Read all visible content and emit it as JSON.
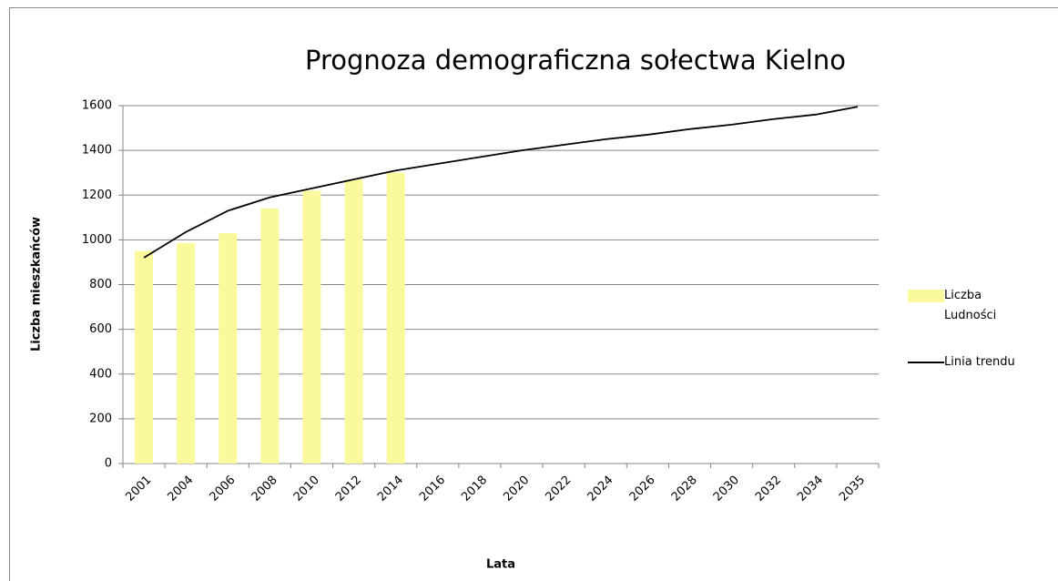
{
  "chart_data": {
    "type": "bar",
    "title": "Prognoza demograficzna sołectwa Kielno",
    "x_label": "Lata",
    "y_label": "Liczba mieszkańców",
    "categories": [
      "2001",
      "2004",
      "2006",
      "2008",
      "2010",
      "2012",
      "2014",
      "2016",
      "2018",
      "2020",
      "2022",
      "2024",
      "2026",
      "2028",
      "2030",
      "2032",
      "2034",
      "2035"
    ],
    "series": [
      {
        "name": "Liczba Ludności",
        "type": "bar",
        "color": "#fafa9c",
        "values": [
          950,
          985,
          1030,
          1140,
          1220,
          1270,
          1300,
          null,
          null,
          null,
          null,
          null,
          null,
          null,
          null,
          null,
          null,
          null
        ]
      },
      {
        "name": "Linia trendu",
        "type": "line",
        "color": "#000000",
        "values": [
          920,
          1035,
          1130,
          1190,
          1230,
          1270,
          1310,
          1340,
          1370,
          1400,
          1425,
          1450,
          1470,
          1495,
          1515,
          1540,
          1560,
          1595
        ]
      }
    ],
    "ylim": [
      0,
      1600
    ],
    "yticks": [
      0,
      200,
      400,
      600,
      800,
      1000,
      1200,
      1400,
      1600
    ],
    "grid": true,
    "legend": "right"
  }
}
